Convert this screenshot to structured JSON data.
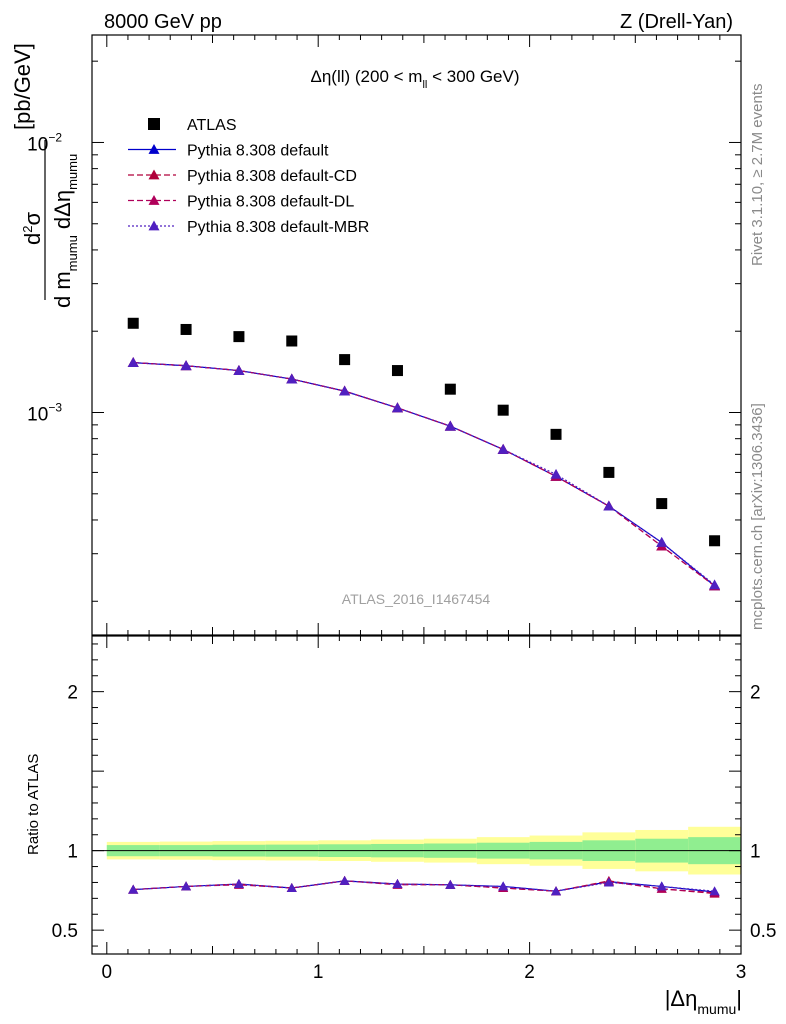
{
  "header": {
    "left": "8000 GeV pp",
    "right": "Z (Drell-Yan)"
  },
  "side_labels": {
    "rivet": "Rivet 3.1.10, ≥ 2.7M events",
    "mcplots": "mcplots.cern.ch [arXiv:1306.3436]"
  },
  "watermark": "ATLAS_2016_I1467454",
  "chart_data": [
    {
      "type": "scatter",
      "title": "Δη(ll) (200 < m_ll < 300 GeV)",
      "title_parts": {
        "pre": "Δη(ll) (200 < m",
        "sub": "ll",
        "post": " < 300 GeV)"
      },
      "ylabel": "d²σ / d m_mumu dΔη_mumu [pb/GeV]",
      "ylabel_parts": {
        "d2sigma": "d",
        "sup": "2",
        "sigma": "σ",
        "den_a": "d m",
        "den_sub_a": "mumu",
        "den_b": " dΔη",
        "den_sub_b": "mumu",
        "unit": "[pb/GeV]"
      },
      "yscale": "log",
      "ylim": [
        0.00015,
        0.025
      ],
      "xlim": [
        -0.07,
        3.0
      ],
      "yticks": [
        {
          "value": 0.01,
          "base": "10",
          "exp": "−2"
        },
        {
          "value": 0.001,
          "base": "10",
          "exp": "−3"
        }
      ],
      "x": [
        0.125,
        0.375,
        0.625,
        0.875,
        1.125,
        1.375,
        1.625,
        1.875,
        2.125,
        2.375,
        2.625,
        2.875
      ],
      "legend_position": "top-left",
      "series": [
        {
          "name": "ATLAS",
          "color": "#000000",
          "marker": "square",
          "line": "none",
          "values": [
            0.00214,
            0.00203,
            0.00191,
            0.00184,
            0.00157,
            0.00143,
            0.00122,
            0.00102,
            0.00083,
            0.0006,
            0.00046,
            0.000335
          ]
        },
        {
          "name": "Pythia 8.308 default",
          "color": "#0000cc",
          "marker": "triangle",
          "line": "solid",
          "values": [
            0.00153,
            0.00149,
            0.00143,
            0.00133,
            0.0012,
            0.00104,
            0.00089,
            0.00073,
            0.00058,
            0.00045,
            0.00033,
            0.000228
          ]
        },
        {
          "name": "Pythia 8.308 default-CD",
          "color": "#b0003a",
          "marker": "triangle",
          "line": "dashed",
          "values": [
            0.00153,
            0.00149,
            0.00143,
            0.00133,
            0.0012,
            0.00104,
            0.00089,
            0.00073,
            0.00058,
            0.00045,
            0.00032,
            0.000228
          ]
        },
        {
          "name": "Pythia 8.308 default-DL",
          "color": "#b0005a",
          "marker": "triangle",
          "line": "dashed",
          "values": [
            0.00153,
            0.00149,
            0.00143,
            0.00133,
            0.0012,
            0.00104,
            0.00089,
            0.00073,
            0.00058,
            0.00045,
            0.00032,
            0.000228
          ]
        },
        {
          "name": "Pythia 8.308 default-MBR",
          "color": "#5020c0",
          "marker": "triangle",
          "line": "dotted",
          "values": [
            0.00153,
            0.00149,
            0.00143,
            0.00133,
            0.0012,
            0.00104,
            0.00089,
            0.00073,
            0.00059,
            0.00045,
            0.00033,
            0.00023
          ]
        }
      ]
    },
    {
      "type": "line",
      "ylabel": "Ratio to ATLAS",
      "xlabel_parts": {
        "main": "|Δη",
        "sub": "mumu",
        "post": "|"
      },
      "ylim": [
        0.35,
        2.35
      ],
      "xlim": [
        -0.07,
        3.0
      ],
      "yticks": [
        0.5,
        1,
        2
      ],
      "ytick_labels": [
        "0.5",
        "1",
        "2"
      ],
      "xticks": [
        0,
        1,
        2,
        3
      ],
      "xtick_labels": [
        "0",
        "1",
        "2",
        "3"
      ],
      "bin_edges": [
        0,
        0.25,
        0.5,
        0.75,
        1.0,
        1.25,
        1.5,
        1.75,
        2.0,
        2.25,
        2.5,
        2.75,
        3.0
      ],
      "band_green_halfwidth": [
        0.035,
        0.035,
        0.037,
        0.038,
        0.04,
        0.042,
        0.045,
        0.05,
        0.055,
        0.065,
        0.075,
        0.085
      ],
      "band_yellow_halfwidth": [
        0.055,
        0.057,
        0.06,
        0.062,
        0.065,
        0.07,
        0.075,
        0.085,
        0.095,
        0.115,
        0.13,
        0.15
      ],
      "band_green_color": "#90ee90",
      "band_yellow_color": "#ffff99",
      "series": [
        {
          "name": "Pythia 8.308 default",
          "color": "#0000cc",
          "line": "solid",
          "values": [
            0.755,
            0.775,
            0.79,
            0.765,
            0.81,
            0.79,
            0.785,
            0.775,
            0.745,
            0.805,
            0.775,
            0.74
          ]
        },
        {
          "name": "Pythia 8.308 default-CD",
          "color": "#b0003a",
          "line": "dashed",
          "values": [
            0.755,
            0.775,
            0.79,
            0.765,
            0.81,
            0.79,
            0.785,
            0.765,
            0.745,
            0.81,
            0.76,
            0.73
          ]
        },
        {
          "name": "Pythia 8.308 default-DL",
          "color": "#b0005a",
          "line": "dashed",
          "values": [
            0.755,
            0.775,
            0.785,
            0.765,
            0.81,
            0.785,
            0.785,
            0.765,
            0.745,
            0.805,
            0.76,
            0.735
          ]
        },
        {
          "name": "Pythia 8.308 default-MBR",
          "color": "#5020c0",
          "line": "dotted",
          "values": [
            0.755,
            0.775,
            0.79,
            0.765,
            0.81,
            0.79,
            0.785,
            0.775,
            0.745,
            0.8,
            0.775,
            0.745
          ]
        }
      ]
    }
  ]
}
